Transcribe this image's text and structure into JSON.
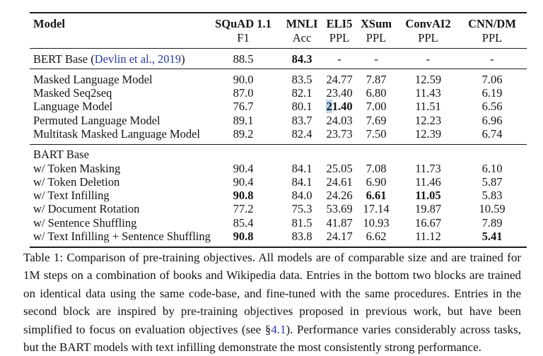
{
  "colors": {
    "link_blue": "#2a3aa8",
    "highlight_blue": "#b9d7f3",
    "rule_black": "#1c1c1c"
  },
  "table": {
    "columns": [
      {
        "label": "Model",
        "sub": ""
      },
      {
        "label": "SQuAD 1.1",
        "sub": "F1"
      },
      {
        "label": "MNLI",
        "sub": "Acc"
      },
      {
        "label": "ELI5",
        "sub": "PPL"
      },
      {
        "label": "XSum",
        "sub": "PPL"
      },
      {
        "label": "ConvAI2",
        "sub": "PPL"
      },
      {
        "label": "CNN/DM",
        "sub": "PPL"
      }
    ],
    "groups": [
      {
        "rows": [
          {
            "model": {
              "pre": "BERT Base (",
              "link": "Devlin et al., 2019",
              "post": ")"
            },
            "cells": [
              {
                "v": "88.5"
              },
              {
                "v": "84.3",
                "b": true
              },
              {
                "v": "-"
              },
              {
                "v": "-"
              },
              {
                "v": "-"
              },
              {
                "v": "-"
              }
            ]
          }
        ]
      },
      {
        "rows": [
          {
            "model": {
              "pre": "Masked Language Model"
            },
            "cells": [
              {
                "v": "90.0"
              },
              {
                "v": "83.5"
              },
              {
                "v": "24.77"
              },
              {
                "v": "7.87"
              },
              {
                "v": "12.59"
              },
              {
                "v": "7.06"
              }
            ]
          },
          {
            "model": {
              "pre": "Masked Seq2seq"
            },
            "cells": [
              {
                "v": "87.0"
              },
              {
                "v": "82.1"
              },
              {
                "v": "23.40"
              },
              {
                "v": "6.80"
              },
              {
                "v": "11.43"
              },
              {
                "v": "6.19"
              }
            ]
          },
          {
            "model": {
              "pre": "Language Model"
            },
            "cells": [
              {
                "v": "76.7"
              },
              {
                "v": "80.1"
              },
              {
                "v": "21.40",
                "b": true,
                "hl": 1
              },
              {
                "v": "7.00"
              },
              {
                "v": "11.51"
              },
              {
                "v": "6.56"
              }
            ]
          },
          {
            "model": {
              "pre": "Permuted Language Model"
            },
            "cells": [
              {
                "v": "89.1"
              },
              {
                "v": "83.7"
              },
              {
                "v": "24.03"
              },
              {
                "v": "7.69"
              },
              {
                "v": "12.23"
              },
              {
                "v": "6.96"
              }
            ]
          },
          {
            "model": {
              "pre": "Multitask Masked Language Model"
            },
            "cells": [
              {
                "v": "89.2"
              },
              {
                "v": "82.4"
              },
              {
                "v": "23.73"
              },
              {
                "v": "7.50"
              },
              {
                "v": "12.39"
              },
              {
                "v": "6.74"
              }
            ]
          }
        ]
      },
      {
        "rows": [
          {
            "model": {
              "pre": "BART Base"
            },
            "cells": []
          },
          {
            "model": {
              "pre": "w/ Token Masking"
            },
            "cells": [
              {
                "v": "90.4"
              },
              {
                "v": "84.1"
              },
              {
                "v": "25.05"
              },
              {
                "v": "7.08"
              },
              {
                "v": "11.73"
              },
              {
                "v": "6.10"
              }
            ]
          },
          {
            "model": {
              "pre": "w/ Token Deletion"
            },
            "cells": [
              {
                "v": "90.4"
              },
              {
                "v": "84.1"
              },
              {
                "v": "24.61"
              },
              {
                "v": "6.90"
              },
              {
                "v": "11.46"
              },
              {
                "v": "5.87"
              }
            ]
          },
          {
            "model": {
              "pre": "w/ Text Infilling"
            },
            "cells": [
              {
                "v": "90.8",
                "b": true
              },
              {
                "v": "84.0"
              },
              {
                "v": "24.26"
              },
              {
                "v": "6.61",
                "b": true
              },
              {
                "v": "11.05",
                "b": true
              },
              {
                "v": "5.83"
              }
            ]
          },
          {
            "model": {
              "pre": "w/ Document Rotation"
            },
            "cells": [
              {
                "v": "77.2"
              },
              {
                "v": "75.3"
              },
              {
                "v": "53.69"
              },
              {
                "v": "17.14"
              },
              {
                "v": "19.87"
              },
              {
                "v": "10.59"
              }
            ]
          },
          {
            "model": {
              "pre": "w/ Sentence Shuffling"
            },
            "cells": [
              {
                "v": "85.4"
              },
              {
                "v": "81.5"
              },
              {
                "v": "41.87"
              },
              {
                "v": "10.93"
              },
              {
                "v": "16.67"
              },
              {
                "v": "7.89"
              }
            ]
          },
          {
            "model": {
              "pre": "w/ Text Infilling + Sentence Shuffling"
            },
            "cells": [
              {
                "v": "90.8",
                "b": true
              },
              {
                "v": "83.8"
              },
              {
                "v": "24.17"
              },
              {
                "v": "6.62"
              },
              {
                "v": "11.12"
              },
              {
                "v": "5.41",
                "b": true
              }
            ]
          }
        ]
      }
    ]
  },
  "caption": {
    "before_link": "Table 1:  Comparison of pre-training objectives.  All models are of comparable size and are trained for 1M steps on a combination of books and Wikipedia data.  Entries in the bottom two blocks are trained on identical data using the same code-base, and fine-tuned with the same procedures.  Entries in the second block are inspired by pre-training objectives proposed in previous work, but have been simplified to focus on evaluation objectives (see §",
    "link": "4.1",
    "after_link": ").  Performance varies considerably across tasks, but the BART models with text infilling demonstrate the most consistently strong performance."
  }
}
